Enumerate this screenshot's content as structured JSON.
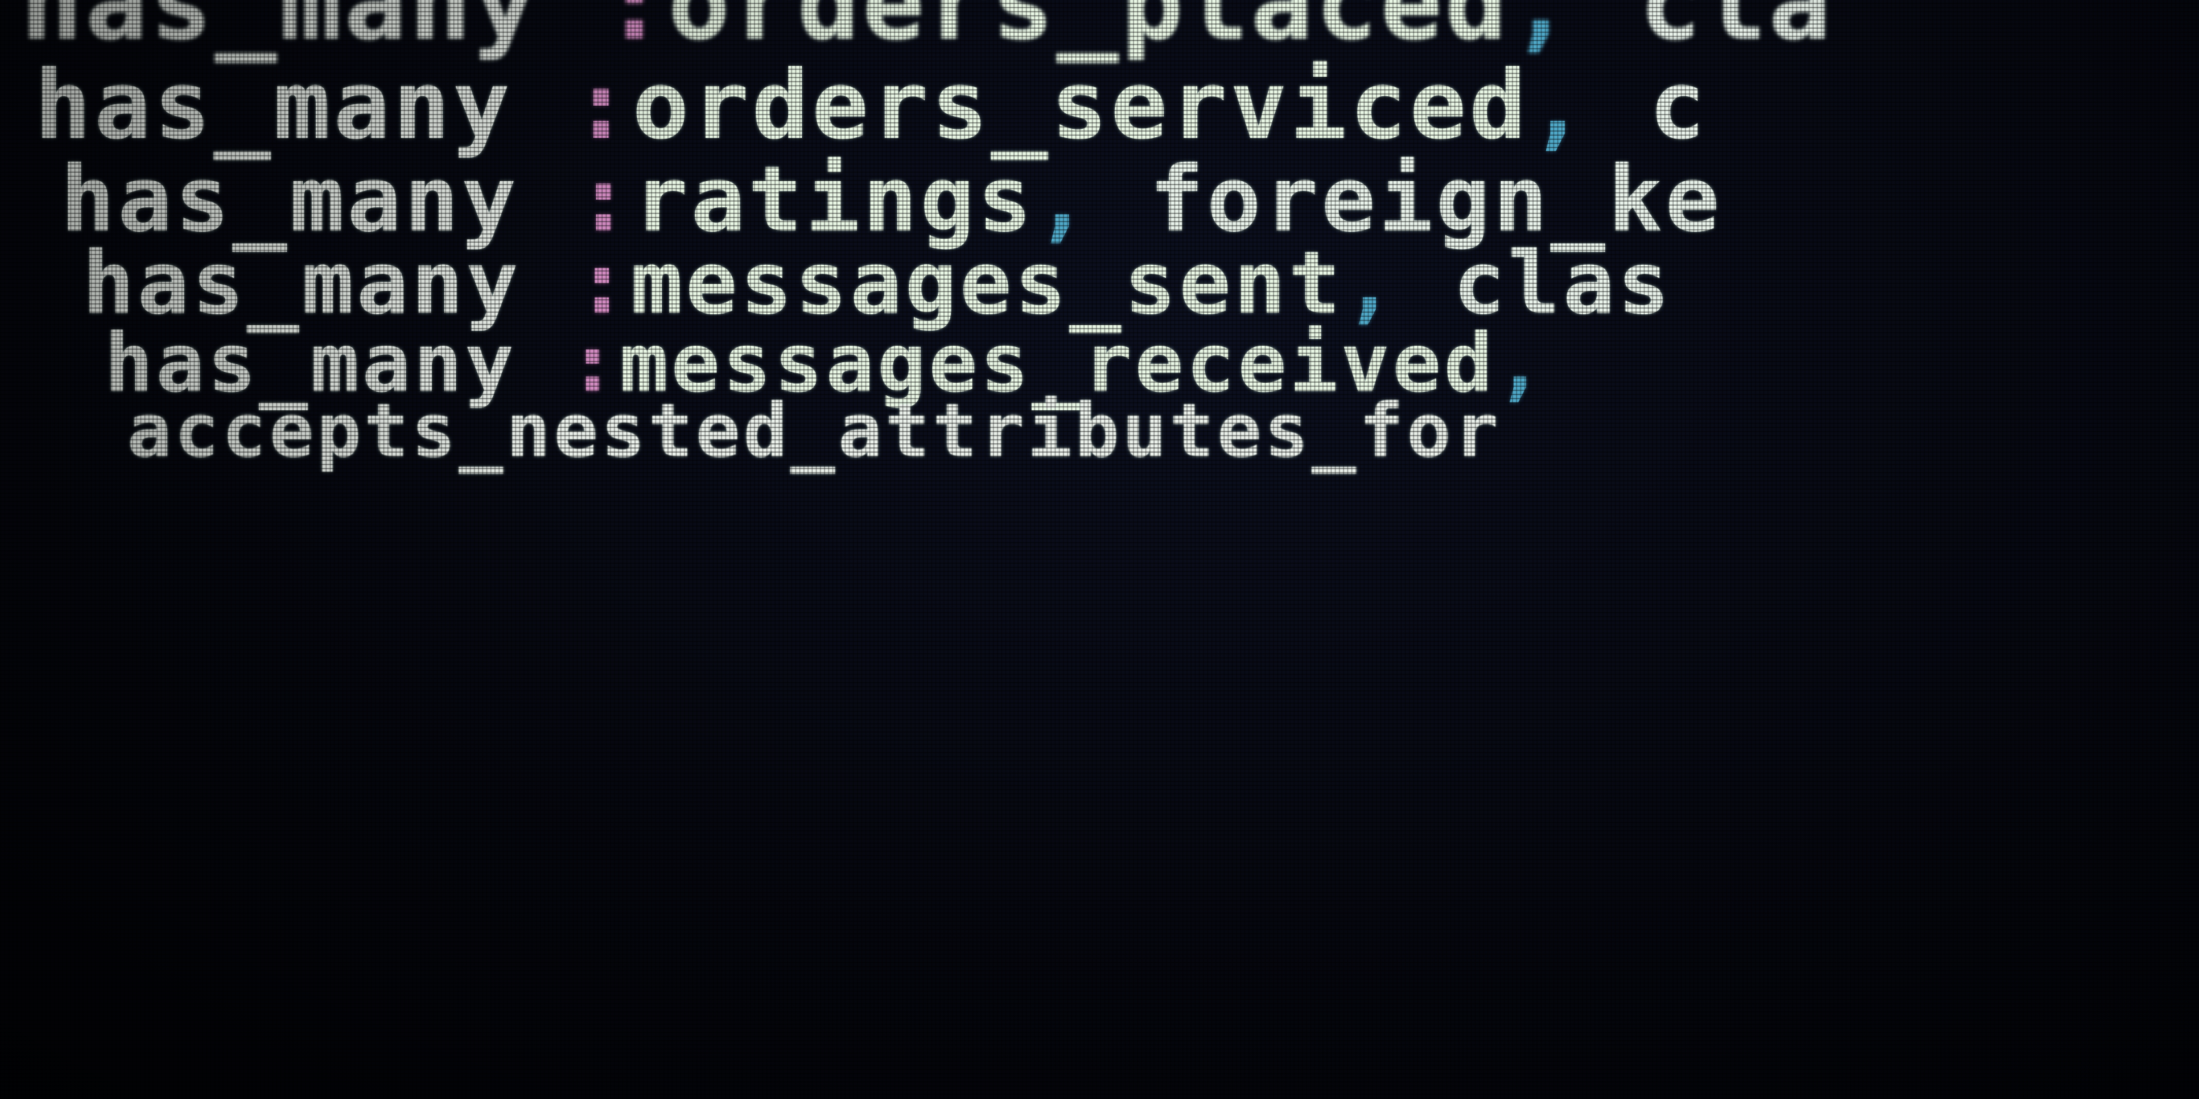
{
  "editor": {
    "lines": [
      {
        "keyword": "has_many",
        "colon": ":",
        "symbol": "orders_placed",
        "comma": ",",
        "rest": " cla"
      },
      {
        "keyword": "has_many",
        "colon": ":",
        "symbol": "orders_serviced",
        "comma": ",",
        "rest": " c"
      },
      {
        "keyword": "has_many",
        "colon": ":",
        "symbol": "ratings",
        "comma": ",",
        "rest": " foreign_ke"
      },
      {
        "keyword": "has_many",
        "colon": ":",
        "symbol": "messages_sent",
        "comma": ",",
        "rest": " clas"
      },
      {
        "keyword": "has_many",
        "colon": ":",
        "symbol": "messages_received",
        "comma": ",",
        "rest": ""
      },
      {
        "keyword": "accepts_nested_attributes_for",
        "colon": "",
        "symbol": "",
        "comma": "",
        "rest": ""
      }
    ]
  },
  "colors": {
    "background": "#05060c",
    "text": "#eef4ee",
    "symbol_colon": "#d08ac0",
    "comma": "#4fa8c8"
  }
}
